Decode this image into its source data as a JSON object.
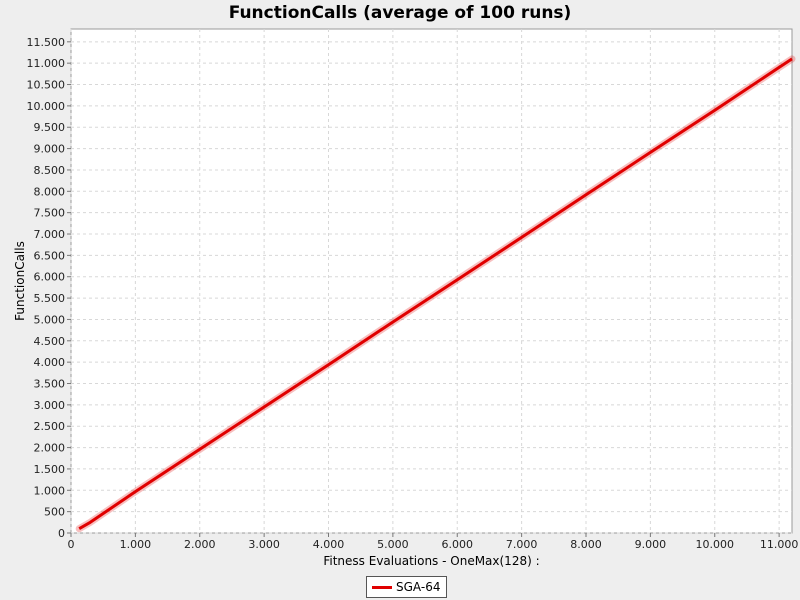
{
  "chart_data": {
    "type": "line",
    "title": "FunctionCalls (average of 100 runs)",
    "xlabel": "Fitness Evaluations - OneMax(128) :",
    "ylabel": "FunctionCalls",
    "xlim": [
      0,
      11200
    ],
    "ylim": [
      0,
      11800
    ],
    "x_ticks": [
      0,
      1000,
      2000,
      3000,
      4000,
      5000,
      6000,
      7000,
      8000,
      9000,
      10000,
      11000
    ],
    "x_tick_labels": [
      "0",
      "1.000",
      "2.000",
      "3.000",
      "4.000",
      "5.000",
      "6.000",
      "7.000",
      "8.000",
      "9.000",
      "10.000",
      "11.000"
    ],
    "y_ticks": [
      0,
      500,
      1000,
      1500,
      2000,
      2500,
      3000,
      3500,
      4000,
      4500,
      5000,
      5500,
      6000,
      6500,
      7000,
      7500,
      8000,
      8500,
      9000,
      9500,
      10000,
      10500,
      11000,
      11500
    ],
    "y_tick_labels": [
      "0",
      "500",
      "1.000",
      "1.500",
      "2.000",
      "2.500",
      "3.000",
      "3.500",
      "4.000",
      "4.500",
      "5.000",
      "5.500",
      "6.000",
      "6.500",
      "7.000",
      "7.500",
      "8.000",
      "8.500",
      "9.000",
      "9.500",
      "10.000",
      "10.500",
      "11.000",
      "11.500"
    ],
    "grid": true,
    "legend_position": "bottom-center",
    "series": [
      {
        "name": "SGA-64",
        "color": "#e00000",
        "x": [
          128,
          300,
          1000,
          2000,
          3000,
          4000,
          5000,
          6000,
          7000,
          8000,
          9000,
          10000,
          11000,
          11200
        ],
        "y": [
          100,
          250,
          970,
          1960,
          2950,
          3940,
          4940,
          5930,
          6920,
          7920,
          8910,
          9900,
          10900,
          11100
        ]
      }
    ]
  }
}
